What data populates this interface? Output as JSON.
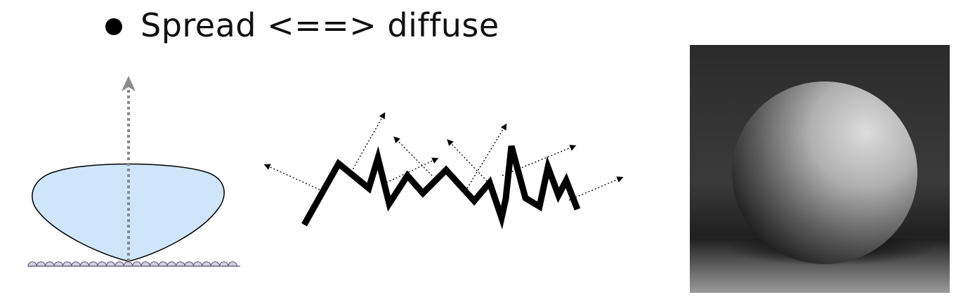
{
  "bullet": {
    "text": "Spread <==> diffuse"
  },
  "colors": {
    "lobe_fill": "#cfe5fa",
    "lobe_stroke": "#000000",
    "arrow_gray": "#8a8a8a",
    "surface_fill": "#d6cfe6",
    "surface_stroke": "#55506a"
  }
}
